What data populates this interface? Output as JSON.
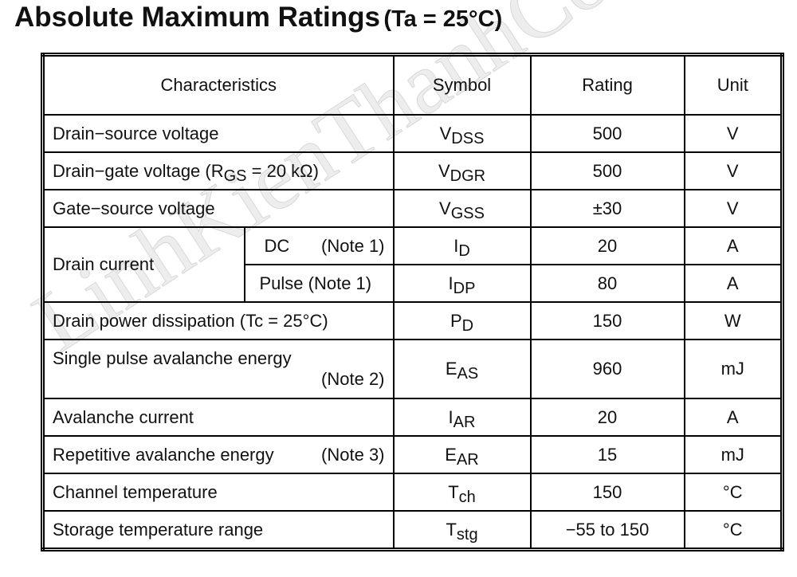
{
  "title": {
    "main": "Absolute Maximum Ratings",
    "condition": "(Ta = 25°C)"
  },
  "watermark": "LinhKienThanhCong.vn",
  "table": {
    "header": [
      "Characteristics",
      "Symbol",
      "Rating",
      "Unit"
    ],
    "rows": [
      {
        "characteristic": "Drain−source voltage",
        "symbol": {
          "main": "V",
          "sub": "DSS"
        },
        "rating": "500",
        "unit": "V"
      },
      {
        "characteristic": {
          "before": "Drain−gate voltage (R",
          "sub": "GS",
          "after": " = 20 kΩ)"
        },
        "symbol": {
          "main": "V",
          "sub": "DGR"
        },
        "rating": "500",
        "unit": "V"
      },
      {
        "characteristic": "Gate−source voltage",
        "symbol": {
          "main": "V",
          "sub": "GSS"
        },
        "rating": "±30",
        "unit": "V"
      },
      {
        "characteristic": {
          "group": "Drain current",
          "item": "DC",
          "note": "(Note 1)"
        },
        "symbol": {
          "main": "I",
          "sub": "D"
        },
        "rating": "20",
        "unit": "A"
      },
      {
        "characteristic": {
          "item": "Pulse (Note 1)"
        },
        "symbol": {
          "main": "I",
          "sub": "DP"
        },
        "rating": "80",
        "unit": "A"
      },
      {
        "characteristic": "Drain power dissipation (Tc = 25°C)",
        "symbol": {
          "main": "P",
          "sub": "D"
        },
        "rating": "150",
        "unit": "W"
      },
      {
        "characteristic": {
          "text": "Single pulse avalanche energy",
          "note": "(Note 2)"
        },
        "symbol": {
          "main": "E",
          "sub": "AS"
        },
        "rating": "960",
        "unit": "mJ"
      },
      {
        "characteristic": "Avalanche current",
        "symbol": {
          "main": "I",
          "sub": "AR"
        },
        "rating": "20",
        "unit": "A"
      },
      {
        "characteristic": {
          "text": "Repetitive avalanche energy",
          "note": "(Note 3)"
        },
        "symbol": {
          "main": "E",
          "sub": "AR"
        },
        "rating": "15",
        "unit": "mJ"
      },
      {
        "characteristic": "Channel temperature",
        "symbol": {
          "main": "T",
          "sub": "ch"
        },
        "rating": "150",
        "unit": "°C"
      },
      {
        "characteristic": "Storage temperature range",
        "symbol": {
          "main": "T",
          "sub": "stg"
        },
        "rating": "−55 to 150",
        "unit": "°C"
      }
    ]
  }
}
